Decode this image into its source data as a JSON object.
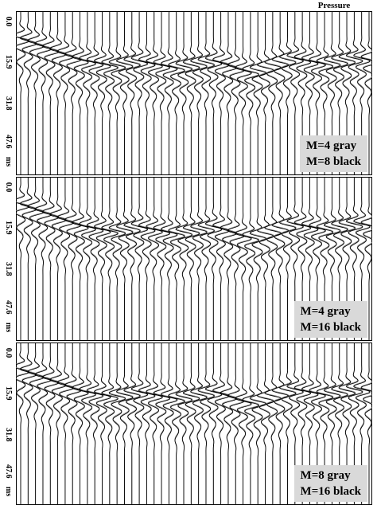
{
  "figure": {
    "title": "Pressure"
  },
  "chart_data": [
    {
      "type": "line",
      "subtype": "seismic-wiggle-traces",
      "ylabel": "ms",
      "yticks": [
        "0.0",
        "15.9",
        "31.8",
        "47.6"
      ],
      "ylim": [
        0,
        60
      ],
      "trace_count": 48,
      "legend": [
        "M=4 gray",
        "M=8 black"
      ],
      "legend_placement": "bottom-right",
      "series": [
        {
          "name": "M=4",
          "color": "#888888"
        },
        {
          "name": "M=8",
          "color": "#000000"
        }
      ],
      "event_arrival_ms": [
        9.5,
        10.5,
        11.5,
        12.5,
        13.5,
        14.5,
        15.5,
        16.5,
        17.5,
        18.0,
        18.5,
        19.0,
        19.5,
        19.5,
        19.0,
        18.5,
        18.0,
        18.5,
        19.0,
        19.5,
        20.0,
        20.5,
        20.0,
        19.5,
        19.0,
        18.5,
        18.0,
        18.5,
        19.5,
        20.5,
        21.5,
        22.0,
        21.5,
        20.5,
        19.5,
        18.5,
        17.5,
        17.0,
        17.5,
        18.0,
        18.5,
        19.0,
        18.5,
        18.0,
        17.5,
        17.0,
        17.0,
        17.5
      ]
    },
    {
      "type": "line",
      "subtype": "seismic-wiggle-traces",
      "ylabel": "ms",
      "yticks": [
        "0.0",
        "15.9",
        "31.8",
        "47.6"
      ],
      "ylim": [
        0,
        60
      ],
      "trace_count": 48,
      "legend": [
        "M=4 gray",
        "M=16 black"
      ],
      "legend_placement": "bottom-right",
      "series": [
        {
          "name": "M=4",
          "color": "#888888"
        },
        {
          "name": "M=16",
          "color": "#000000"
        }
      ],
      "event_arrival_ms": [
        9.5,
        10.5,
        11.5,
        12.5,
        13.5,
        14.5,
        15.5,
        16.5,
        17.5,
        18.0,
        18.5,
        19.0,
        19.5,
        19.5,
        19.0,
        18.5,
        18.0,
        18.5,
        19.0,
        19.5,
        20.0,
        20.5,
        20.0,
        19.5,
        19.0,
        18.5,
        18.0,
        18.5,
        19.5,
        20.5,
        21.5,
        22.0,
        21.5,
        20.5,
        19.5,
        18.5,
        17.5,
        17.0,
        17.5,
        18.0,
        18.5,
        19.0,
        18.5,
        18.0,
        17.5,
        17.0,
        17.0,
        17.5
      ]
    },
    {
      "type": "line",
      "subtype": "seismic-wiggle-traces",
      "ylabel": "ms",
      "yticks": [
        "0.0",
        "15.9",
        "31.8",
        "47.6"
      ],
      "ylim": [
        0,
        60
      ],
      "trace_count": 48,
      "legend": [
        "M=8 gray",
        "M=16 black"
      ],
      "legend_placement": "bottom-right",
      "series": [
        {
          "name": "M=8",
          "color": "#888888"
        },
        {
          "name": "M=16",
          "color": "#000000"
        }
      ],
      "event_arrival_ms": [
        9.5,
        10.5,
        11.5,
        12.5,
        13.5,
        14.5,
        15.5,
        16.5,
        17.5,
        18.0,
        18.5,
        19.0,
        19.5,
        19.5,
        19.0,
        18.5,
        18.0,
        18.5,
        19.0,
        19.5,
        20.0,
        20.5,
        20.0,
        19.5,
        19.0,
        18.5,
        18.0,
        18.5,
        19.5,
        20.5,
        21.5,
        22.0,
        21.5,
        20.5,
        19.5,
        18.5,
        17.5,
        17.0,
        17.5,
        18.0,
        18.5,
        19.0,
        18.5,
        18.0,
        17.5,
        17.0,
        17.0,
        17.5
      ]
    }
  ]
}
